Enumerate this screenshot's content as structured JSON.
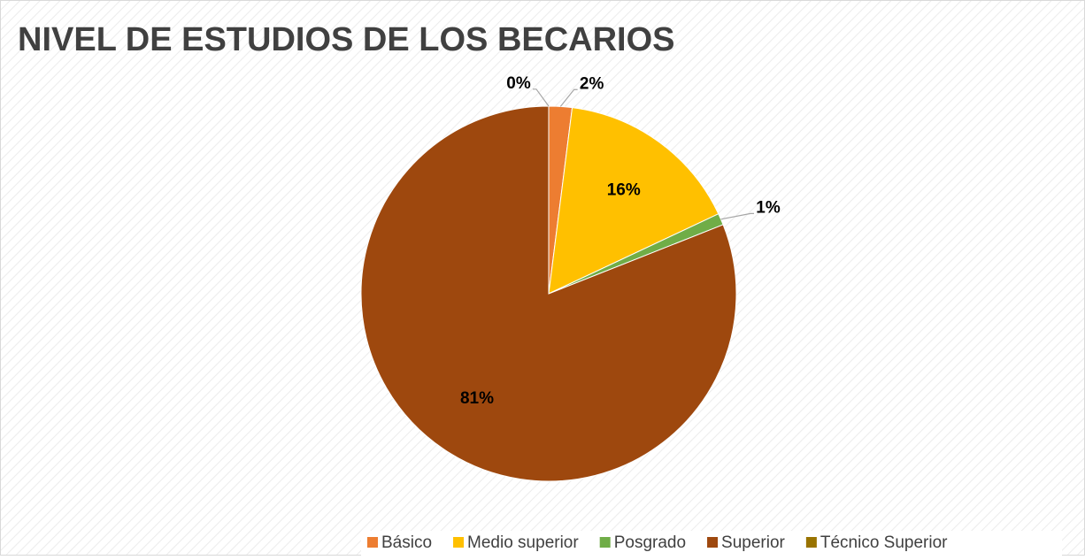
{
  "chart_data": {
    "type": "pie",
    "title": "NIVEL DE ESTUDIOS DE LOS BECARIOS",
    "categories": [
      "Básico",
      "Medio superior",
      "Posgrado",
      "Superior",
      "Técnico Superior"
    ],
    "values": [
      2,
      16,
      1,
      81,
      0
    ],
    "value_labels": [
      "2%",
      "16%",
      "1%",
      "81%",
      "0%"
    ],
    "colors": [
      "#ED7D31",
      "#FFC000",
      "#70AD47",
      "#9E480E",
      "#997300"
    ],
    "legend": "bottom"
  }
}
